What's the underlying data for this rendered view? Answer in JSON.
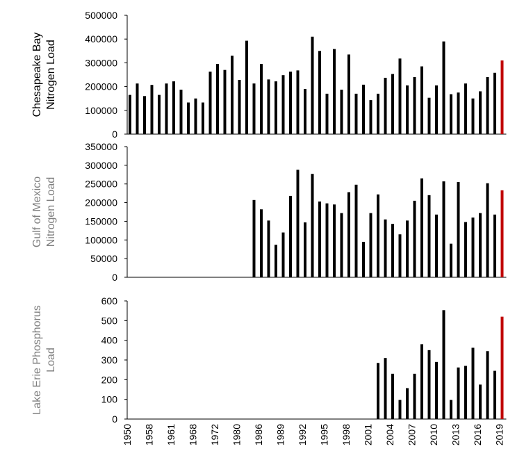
{
  "chart_data": [
    {
      "type": "bar",
      "ylabel": [
        "Chesapeake Bay",
        "Nitrogen Load"
      ],
      "ylabel_color": "#000000",
      "color": "#000000",
      "last_color": "#c00000",
      "values": [
        165000,
        213000,
        160000,
        207000,
        165000,
        213000,
        222000,
        187000,
        133000,
        150000,
        133000,
        263000,
        295000,
        270000,
        330000,
        228000,
        393000,
        213000,
        295000,
        230000,
        222000,
        248000,
        263000,
        268000,
        190000,
        410000,
        350000,
        170000,
        358000,
        187000,
        335000,
        170000,
        208000,
        143000,
        170000,
        237000,
        253000,
        318000,
        205000,
        240000,
        285000,
        153000,
        205000,
        390000,
        168000,
        175000,
        213000,
        150000,
        180000,
        240000,
        258000,
        310000
      ],
      "ylim": [
        0,
        500000
      ],
      "yticks": [
        0,
        100000,
        200000,
        300000,
        400000,
        500000
      ]
    },
    {
      "type": "bar",
      "ylabel": [
        "Gulf of Mexico",
        "Nitrogen Load"
      ],
      "ylabel_color": "#7f7f7f",
      "color": "#000000",
      "last_color": "#c00000",
      "values": [
        null,
        null,
        null,
        null,
        null,
        null,
        null,
        null,
        null,
        null,
        null,
        null,
        null,
        null,
        null,
        null,
        null,
        207000,
        182000,
        152000,
        87000,
        120000,
        218000,
        288000,
        147000,
        277000,
        203000,
        198000,
        195000,
        172000,
        228000,
        248000,
        95000,
        172000,
        222000,
        155000,
        143000,
        115000,
        152000,
        205000,
        265000,
        220000,
        168000,
        257000,
        90000,
        255000,
        148000,
        160000,
        172000,
        252000,
        168000,
        233000
      ],
      "ylim": [
        0,
        350000
      ],
      "yticks": [
        0,
        50000,
        100000,
        150000,
        200000,
        250000,
        300000,
        350000
      ]
    },
    {
      "type": "bar",
      "ylabel": [
        "Lake Erie Phosphorus",
        "Load"
      ],
      "ylabel_color": "#7f7f7f",
      "color": "#000000",
      "last_color": "#c00000",
      "categories": [
        "1950",
        null,
        null,
        "1958",
        null,
        null,
        "1961",
        null,
        null,
        "1968",
        null,
        null,
        "1972",
        null,
        null,
        "1980",
        null,
        null,
        "1986",
        null,
        null,
        "1989",
        null,
        null,
        "1992",
        null,
        null,
        "1995",
        null,
        null,
        "1998",
        null,
        null,
        "2001",
        null,
        null,
        "2004",
        null,
        null,
        "2007",
        null,
        null,
        "2010",
        null,
        null,
        "2013",
        null,
        null,
        "2016",
        null,
        null,
        "2019"
      ],
      "values": [
        null,
        null,
        null,
        null,
        null,
        null,
        null,
        null,
        null,
        null,
        null,
        null,
        null,
        null,
        null,
        null,
        null,
        null,
        null,
        null,
        null,
        null,
        null,
        null,
        null,
        null,
        null,
        null,
        null,
        null,
        null,
        null,
        null,
        null,
        285,
        310,
        230,
        97,
        157,
        230,
        380,
        350,
        290,
        553,
        97,
        262,
        270,
        362,
        175,
        345,
        245,
        520
      ],
      "ylim": [
        0,
        600
      ],
      "yticks": [
        0,
        100,
        200,
        300,
        400,
        500,
        600
      ]
    }
  ]
}
